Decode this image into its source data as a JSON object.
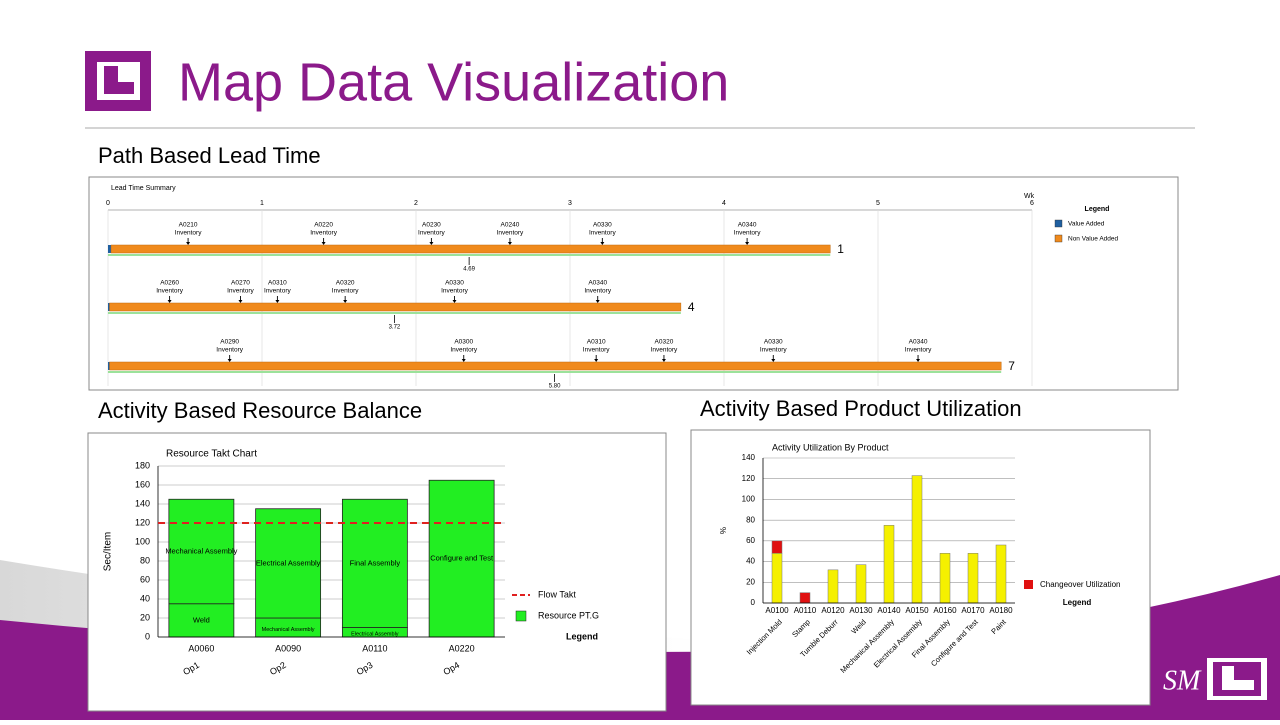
{
  "title": "Map Data Visualization",
  "sections": [
    "Path Based Lead Time",
    "Activity Based Resource Balance",
    "Activity Based Product Utilization"
  ],
  "footer_logo_text": "SM",
  "chart_data": [
    {
      "type": "timeline",
      "title": "Lead Time Summary",
      "x_label": "Wk",
      "xlim": [
        0,
        6
      ],
      "xticks": [
        0,
        1,
        2,
        3,
        4,
        5,
        6
      ],
      "legend_title": "Legend",
      "series": [
        {
          "name": "Value Added",
          "color": "#1f5fa0"
        },
        {
          "name": "Non Value Added",
          "color": "#f08a1c"
        }
      ],
      "rows": [
        {
          "label": "1",
          "value_added": 0.02,
          "non_value_added": 4.67,
          "total": 4.69,
          "markers": [
            {
              "label": "A0210",
              "sub": "Inventory",
              "x": 0.52
            },
            {
              "label": "A0220",
              "sub": "Inventory",
              "x": 1.4
            },
            {
              "label": "A0230",
              "sub": "Inventory",
              "x": 2.1
            },
            {
              "label": "A0240",
              "sub": "Inventory",
              "x": 2.61
            },
            {
              "label": "A0330",
              "sub": "Inventory",
              "x": 3.21
            },
            {
              "label": "A0340",
              "sub": "Inventory",
              "x": 4.15
            }
          ]
        },
        {
          "label": "4",
          "value_added": 0.01,
          "non_value_added": 3.71,
          "total": 3.72,
          "markers": [
            {
              "label": "A0260",
              "sub": "Inventory",
              "x": 0.4
            },
            {
              "label": "A0270",
              "sub": "Inventory",
              "x": 0.86
            },
            {
              "label": "A0310",
              "sub": "Inventory",
              "x": 1.1
            },
            {
              "label": "A0320",
              "sub": "Inventory",
              "x": 1.54
            },
            {
              "label": "A0330",
              "sub": "Inventory",
              "x": 2.25
            },
            {
              "label": "A0340",
              "sub": "Inventory",
              "x": 3.18
            }
          ]
        },
        {
          "label": "7",
          "value_added": 0.01,
          "non_value_added": 5.79,
          "total": 5.8,
          "total_label": "5.80",
          "markers": [
            {
              "label": "A0290",
              "sub": "Inventory",
              "x": 0.79
            },
            {
              "label": "A0300",
              "sub": "Inventory",
              "x": 2.31
            },
            {
              "label": "A0310",
              "sub": "Inventory",
              "x": 3.17
            },
            {
              "label": "A0320",
              "sub": "Inventory",
              "x": 3.61
            },
            {
              "label": "A0330",
              "sub": "Inventory",
              "x": 4.32
            },
            {
              "label": "A0340",
              "sub": "Inventory",
              "x": 5.26
            }
          ]
        }
      ]
    },
    {
      "type": "bar",
      "title": "Resource Takt Chart",
      "y_label": "Sec/Item",
      "ylim": [
        0,
        180
      ],
      "yticks": [
        0,
        20,
        40,
        60,
        80,
        100,
        120,
        140,
        160,
        180
      ],
      "grid": true,
      "color": "#22ee22",
      "legend_title": "Legend",
      "legend_name": "Resource PT.G",
      "reference_lines": [
        {
          "name": "Flow Takt",
          "value": 120,
          "color": "#e02020"
        }
      ],
      "bars": [
        {
          "category": "A0060",
          "group": "Op1",
          "segments": [
            {
              "name": "Weld",
              "value": 35
            },
            {
              "name": "Mechanical Assembly",
              "value": 110
            }
          ]
        },
        {
          "category": "A0090",
          "group": "Op2",
          "segments": [
            {
              "name": "Mechanical Assembly",
              "value": 20
            },
            {
              "name": "Electrical Assembly",
              "value": 115
            }
          ]
        },
        {
          "category": "A0110",
          "group": "Op3",
          "segments": [
            {
              "name": "Electrical Assembly",
              "value": 10
            },
            {
              "name": "Final Assembly",
              "value": 135
            }
          ]
        },
        {
          "category": "A0220",
          "group": "Op4",
          "segments": [
            {
              "name": "Configure and Test",
              "value": 165
            }
          ]
        }
      ]
    },
    {
      "type": "bar",
      "title": "Activity Utilization By Product",
      "y_label": "%",
      "ylim": [
        0,
        140
      ],
      "yticks": [
        0,
        20,
        40,
        60,
        80,
        100,
        120,
        140
      ],
      "grid": true,
      "legend_title": "Legend",
      "categories": [
        "A0100",
        "A0110",
        "A0120",
        "A0130",
        "A0140",
        "A0150",
        "A0160",
        "A0170",
        "A0180"
      ],
      "labels": [
        "Injection Mold",
        "Stamp",
        "Tumble Deburr",
        "Weld",
        "Mechanical Assembly",
        "Electrical Assembly",
        "Final Assembly",
        "Configure and Test",
        "Paint"
      ],
      "series": [
        {
          "color": "#f5f000",
          "values": [
            48,
            0,
            32,
            37,
            75,
            123,
            48,
            48,
            56
          ]
        },
        {
          "name": "Changeover Utilization",
          "color": "#e01010",
          "values": [
            12,
            10,
            0,
            0,
            0,
            0,
            0,
            0,
            0
          ]
        }
      ]
    }
  ]
}
